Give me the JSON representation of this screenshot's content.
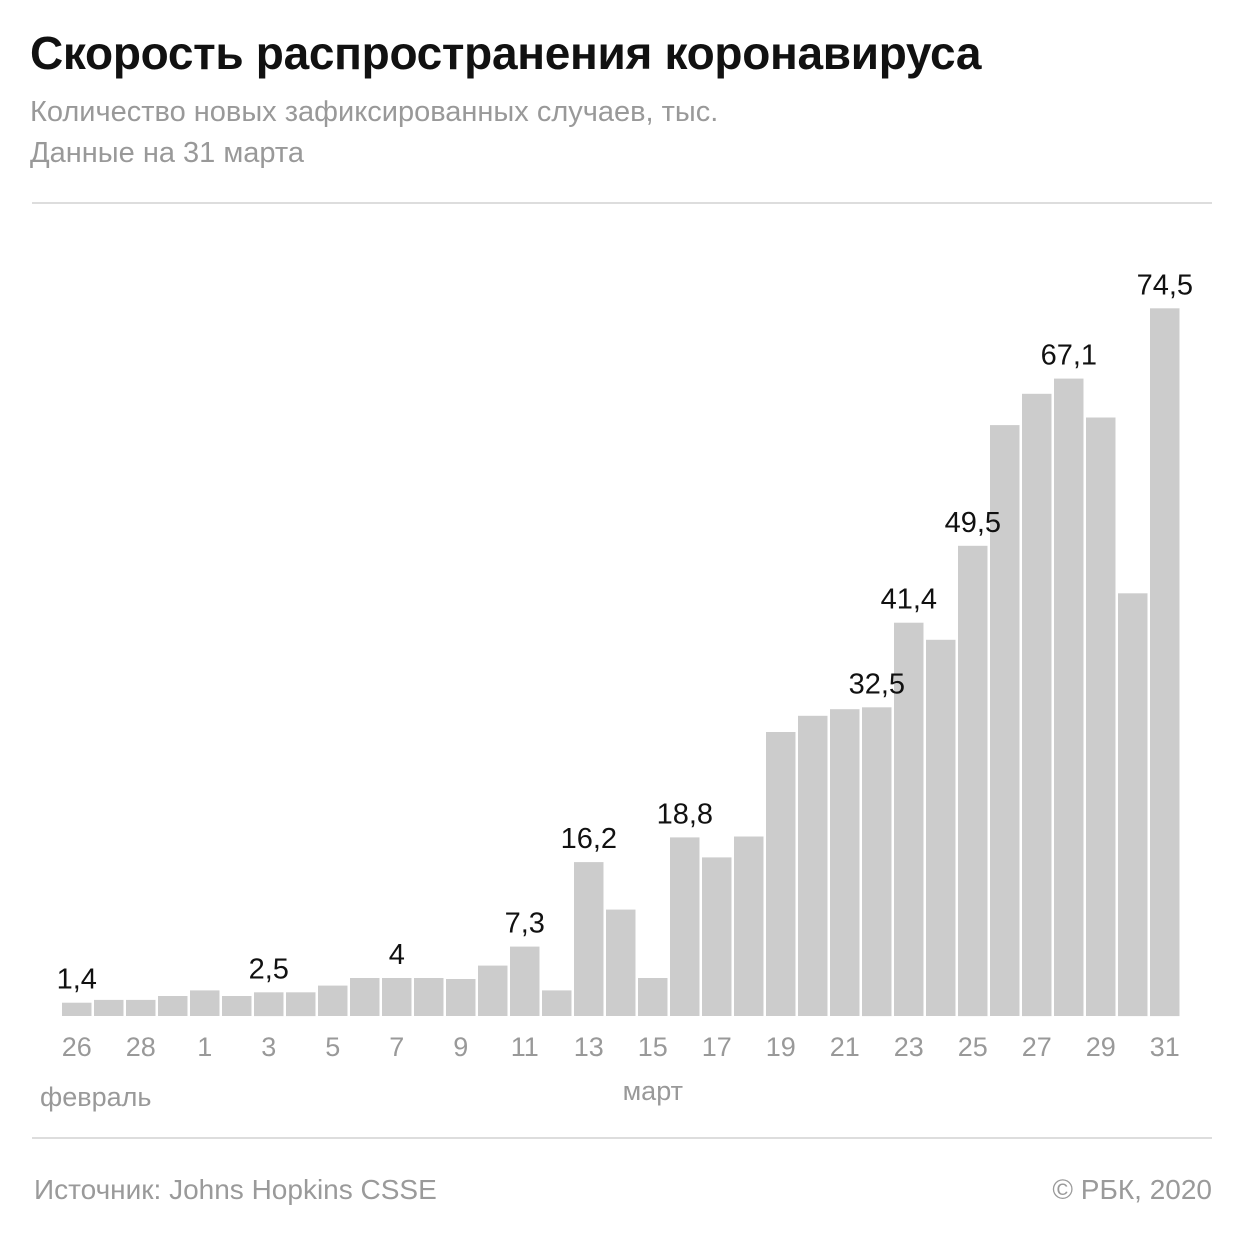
{
  "title": "Скорость распространения коронавируса",
  "subtitle_1": "Количество новых зафиксированных случаев, тыс.",
  "subtitle_2": "Данные на 31 марта",
  "source": "Источник: Johns Hopkins CSSE",
  "copyright": "© РБК, 2020",
  "colors": {
    "bar": "#cccccc",
    "label": "#111111",
    "axis_text": "#999999"
  },
  "chart_data": {
    "type": "bar",
    "title": "Скорость распространения коронавируса",
    "ylabel": "",
    "xlabel": "",
    "grid": false,
    "ylim": [
      0,
      80
    ],
    "categories": [
      "26 фев",
      "27 фев",
      "28 фев",
      "29 фев",
      "1 мар",
      "2 мар",
      "3 мар",
      "4 мар",
      "5 мар",
      "6 мар",
      "7 мар",
      "8 мар",
      "9 мар",
      "10 мар",
      "11 мар",
      "12 мар",
      "13 мар",
      "14 мар",
      "15 мар",
      "16 мар",
      "17 мар",
      "18 мар",
      "19 мар",
      "20 мар",
      "21 мар",
      "22 мар",
      "23 мар",
      "24 мар",
      "25 мар",
      "26 мар",
      "27 мар",
      "28 мар",
      "29 мар",
      "30 мар",
      "31 мар"
    ],
    "values": [
      1.4,
      1.7,
      1.7,
      2.1,
      2.7,
      2.1,
      2.5,
      2.5,
      3.2,
      4.0,
      4.0,
      4.0,
      3.9,
      5.3,
      7.3,
      2.7,
      16.2,
      11.2,
      4.0,
      18.8,
      16.7,
      18.9,
      29.9,
      31.6,
      32.3,
      32.5,
      41.4,
      39.6,
      49.5,
      62.2,
      65.5,
      67.1,
      63.0,
      44.5,
      74.5
    ],
    "tick_labels": [
      "26",
      "28",
      "1",
      "3",
      "5",
      "7",
      "9",
      "11",
      "13",
      "15",
      "17",
      "19",
      "21",
      "23",
      "25",
      "27",
      "29",
      "31"
    ],
    "tick_indices": [
      0,
      2,
      4,
      6,
      8,
      10,
      12,
      14,
      16,
      18,
      20,
      22,
      24,
      26,
      28,
      30,
      32,
      34
    ],
    "group_labels": [
      {
        "text": "февраль",
        "index": 0
      },
      {
        "text": "март",
        "index": 18
      }
    ],
    "data_labels": [
      {
        "index": 0,
        "text": "1,4"
      },
      {
        "index": 6,
        "text": "2,5"
      },
      {
        "index": 10,
        "text": "4"
      },
      {
        "index": 14,
        "text": "7,3"
      },
      {
        "index": 16,
        "text": "16,2"
      },
      {
        "index": 19,
        "text": "18,8"
      },
      {
        "index": 25,
        "text": "32,5"
      },
      {
        "index": 26,
        "text": "41,4"
      },
      {
        "index": 28,
        "text": "49,5"
      },
      {
        "index": 31,
        "text": "67,1"
      },
      {
        "index": 34,
        "text": "74,5"
      }
    ]
  }
}
